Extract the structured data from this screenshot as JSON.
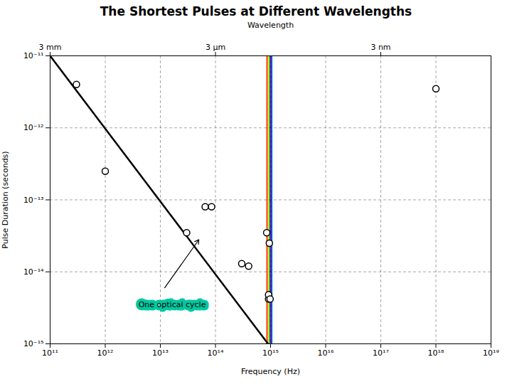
{
  "chart_data": {
    "type": "scatter",
    "title": "The Shortest Pulses at Different Wavelengths",
    "xlabel": "Frequency (Hz)",
    "ylabel": "Pulse Duration (seconds)",
    "x2label": "Wavelength",
    "log": true,
    "grid": true,
    "xlim": [
      100000000000.0,
      1e+19
    ],
    "ylim": [
      1e-15,
      1e-11
    ],
    "xticks": [
      {
        "value": 100000000000.0,
        "label": "10¹¹"
      },
      {
        "value": 1000000000000.0,
        "label": "10¹²"
      },
      {
        "value": 10000000000000.0,
        "label": "10¹³"
      },
      {
        "value": 100000000000000.0,
        "label": "10¹⁴"
      },
      {
        "value": 1000000000000000.0,
        "label": "10¹⁵"
      },
      {
        "value": 1e+16,
        "label": "10¹⁶"
      },
      {
        "value": 1e+17,
        "label": "10¹⁷"
      },
      {
        "value": 1e+18,
        "label": "10¹⁸"
      },
      {
        "value": 1e+19,
        "label": "10¹⁹"
      }
    ],
    "yticks": [
      {
        "value": 1e-15,
        "label": "10⁻¹⁵"
      },
      {
        "value": 1e-14,
        "label": "10⁻¹⁴"
      },
      {
        "value": 1e-13,
        "label": "10⁻¹³"
      },
      {
        "value": 1e-12,
        "label": "10⁻¹²"
      },
      {
        "value": 1e-11,
        "label": "10⁻¹¹"
      }
    ],
    "x2ticks": [
      {
        "value": 100000000000.0,
        "label": "3 mm"
      },
      {
        "value": 100000000000000.0,
        "label": "3 μm"
      },
      {
        "value": 1e+17,
        "label": "3 nm"
      }
    ],
    "band": {
      "x": [
        850000000000000.0,
        1100000000000000.0
      ],
      "colors": [
        "#FF0000",
        "#FF8800",
        "#FFFF00",
        "#00CC00",
        "#0000FF",
        "#6600AA",
        "#0088FF"
      ]
    },
    "series": [
      {
        "type": "line",
        "color": "#000000",
        "x": [
          100000000000.0,
          900000000000000.0
        ],
        "values": [
          1e-11,
          1e-15
        ]
      },
      {
        "type": "scatter",
        "marker": "circle",
        "color": "#000000",
        "x": [
          300000000000.0,
          1000000000000.0,
          30000000000000.0,
          65000000000000.0,
          85000000000000.0,
          300000000000000.0,
          400000000000000.0,
          850000000000000.0,
          950000000000000.0,
          920000000000000.0,
          920000000000000.0,
          980000000000000.0,
          1e+18
        ],
        "values": [
          4e-12,
          2.5e-13,
          3.5e-14,
          8e-14,
          8e-14,
          1.3e-14,
          1.2e-14,
          3.5e-14,
          2.5e-14,
          4.2e-15,
          4.8e-15,
          4.2e-15,
          3.5e-12
        ]
      }
    ],
    "annotations": [
      {
        "text": "One optical cycle",
        "x": 4000000000000.0,
        "y": 3.5e-15,
        "color": "#00C8A0",
        "arrow": {
          "x": 12000000000000.0,
          "y": 6e-15,
          "to_x": 50000000000000.0,
          "to_y": 2.8e-14
        }
      }
    ]
  }
}
